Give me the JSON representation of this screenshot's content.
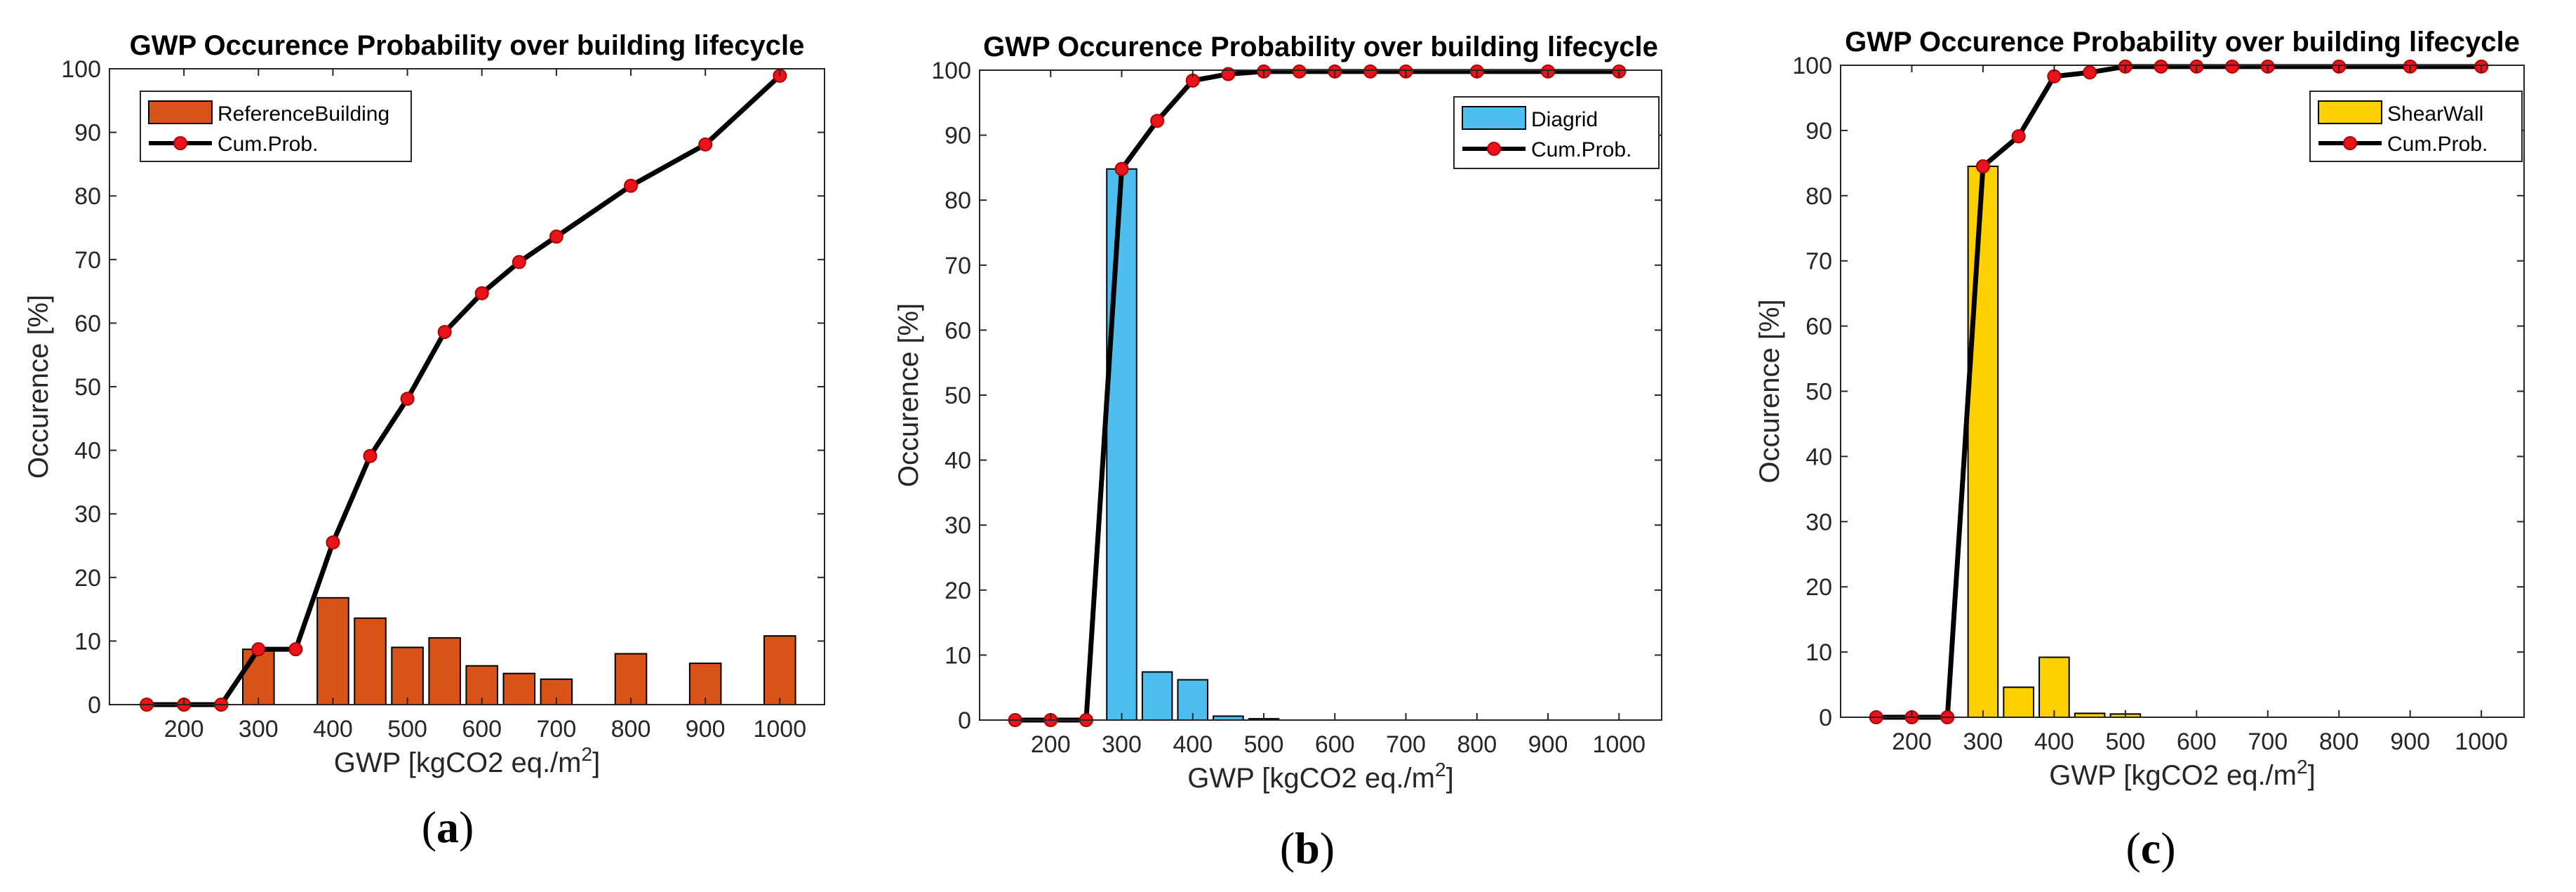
{
  "chart_data": [
    {
      "type": "bar",
      "panel": "a",
      "title": "GWP Occurence Probability over building lifecycle",
      "xlabel": "GWP [kgCO2 eq./m",
      "xlabel_sup": "2",
      "xlabel_end": "]",
      "ylabel": "Occurence [%]",
      "xlim": [
        100,
        1060
      ],
      "ylim": [
        0,
        100
      ],
      "xticks": [
        200,
        300,
        400,
        500,
        600,
        700,
        800,
        900,
        1000
      ],
      "yticks": [
        0,
        10,
        20,
        30,
        40,
        50,
        60,
        70,
        80,
        90,
        100
      ],
      "legend_position": "top-left",
      "bar_color": "#D95319",
      "series": [
        {
          "name": "ReferenceBuilding",
          "kind": "bar",
          "x": [
            150,
            200,
            250,
            300,
            350,
            400,
            450,
            500,
            550,
            600,
            650,
            700,
            800,
            900,
            1000
          ],
          "values": [
            0,
            0,
            0,
            8.7,
            0,
            16.8,
            13.6,
            9.0,
            10.5,
            6.1,
            4.9,
            4.0,
            8.0,
            6.5,
            10.8
          ]
        },
        {
          "name": "Cum.Prob.",
          "kind": "line",
          "x": [
            150,
            200,
            250,
            300,
            350,
            400,
            450,
            500,
            550,
            600,
            650,
            700,
            800,
            900,
            1000
          ],
          "values": [
            0,
            0,
            0,
            8.7,
            8.7,
            25.5,
            39.1,
            48.1,
            58.6,
            64.7,
            69.6,
            73.6,
            81.6,
            88.1,
            98.9
          ]
        }
      ]
    },
    {
      "type": "bar",
      "panel": "b",
      "title": "GWP Occurence Probability over building lifecycle",
      "xlabel": "GWP [kgCO2 eq./m",
      "xlabel_sup": "2",
      "xlabel_end": "]",
      "ylabel": "Occurence [%]",
      "xlim": [
        100,
        1060
      ],
      "ylim": [
        0,
        100
      ],
      "xticks": [
        200,
        300,
        400,
        500,
        600,
        700,
        800,
        900,
        1000
      ],
      "yticks": [
        0,
        10,
        20,
        30,
        40,
        50,
        60,
        70,
        80,
        90,
        100
      ],
      "legend_position": "top-right",
      "bar_color": "#4DBEEE",
      "series": [
        {
          "name": "Diagrid",
          "kind": "bar",
          "x": [
            150,
            200,
            250,
            300,
            350,
            400,
            450,
            500,
            550,
            600,
            650,
            700,
            800,
            900,
            1000
          ],
          "values": [
            0,
            0,
            0,
            84.8,
            7.4,
            6.2,
            0.6,
            0.2,
            0,
            0,
            0,
            0,
            0,
            0,
            0
          ]
        },
        {
          "name": "Cum.Prob.",
          "kind": "line",
          "x": [
            150,
            200,
            250,
            300,
            350,
            400,
            450,
            500,
            550,
            600,
            650,
            700,
            800,
            900,
            1000
          ],
          "values": [
            0,
            0,
            0,
            84.8,
            92.2,
            98.4,
            99.4,
            99.8,
            99.8,
            99.8,
            99.8,
            99.8,
            99.8,
            99.8,
            99.8
          ]
        }
      ]
    },
    {
      "type": "bar",
      "panel": "c",
      "title": "GWP Occurence Probability over building lifecycle",
      "xlabel": "GWP [kgCO2 eq./m",
      "xlabel_sup": "2",
      "xlabel_end": "]",
      "ylabel": "Occurence [%]",
      "xlim": [
        100,
        1060
      ],
      "ylim": [
        0,
        100
      ],
      "xticks": [
        200,
        300,
        400,
        500,
        600,
        700,
        800,
        900,
        1000
      ],
      "yticks": [
        0,
        10,
        20,
        30,
        40,
        50,
        60,
        70,
        80,
        90,
        100
      ],
      "legend_position": "top-right",
      "bar_color": "#FFD000",
      "series": [
        {
          "name": "ShearWall",
          "kind": "bar",
          "x": [
            150,
            200,
            250,
            300,
            350,
            400,
            450,
            500,
            550,
            600,
            650,
            700,
            800,
            900,
            1000
          ],
          "values": [
            0,
            0,
            0,
            84.5,
            4.6,
            9.2,
            0.6,
            0.5,
            0,
            0,
            0,
            0,
            0,
            0,
            0
          ]
        },
        {
          "name": "Cum.Prob.",
          "kind": "line",
          "x": [
            150,
            200,
            250,
            300,
            350,
            400,
            450,
            500,
            550,
            600,
            650,
            700,
            800,
            900,
            1000
          ],
          "values": [
            0,
            0,
            0,
            84.5,
            89.1,
            98.3,
            98.9,
            99.8,
            99.8,
            99.8,
            99.8,
            99.8,
            99.8,
            99.8,
            99.8
          ]
        }
      ]
    }
  ],
  "captions": {
    "a": "a",
    "b": "b",
    "c": "c"
  },
  "line_color": "#000000",
  "marker_color": "#E8141B"
}
